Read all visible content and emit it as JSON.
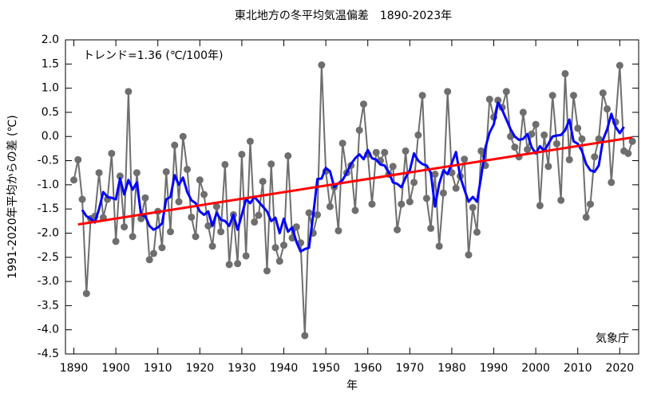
{
  "chart_data": {
    "type": "line",
    "title": "東北地方の冬平均気温偏差　1890-2023年",
    "x_label": "年",
    "y_label": "1991-2020年平均からの差 (℃)",
    "annotations": [
      "トレンド=1.36 (℃/100年)",
      "気象庁"
    ],
    "xlim": [
      1888,
      2024.5
    ],
    "ylim": [
      -4.5,
      2.0
    ],
    "xticks": [
      1890,
      1900,
      1910,
      1920,
      1930,
      1940,
      1950,
      1960,
      1970,
      1980,
      1990,
      2000,
      2010,
      2020
    ],
    "yticks": [
      {
        "value": 2.0,
        "label": "2.0"
      },
      1.5,
      {
        "value": 1.0,
        "label": "1.0"
      },
      0.5,
      {
        "value": 0.0,
        "label": "0.0"
      },
      -0.5,
      {
        "value": -1.0,
        "label": "-1.0"
      },
      -1.5,
      {
        "value": -2.0,
        "label": "-2.0"
      },
      -2.5,
      {
        "value": -3.0,
        "label": "-3.0"
      },
      -3.5,
      {
        "value": -4.0,
        "label": "-4.0"
      },
      -4.5
    ],
    "x": [
      1890,
      1891,
      1892,
      1893,
      1894,
      1895,
      1896,
      1897,
      1898,
      1899,
      1900,
      1901,
      1902,
      1903,
      1904,
      1905,
      1906,
      1907,
      1908,
      1909,
      1910,
      1911,
      1912,
      1913,
      1914,
      1915,
      1916,
      1917,
      1918,
      1919,
      1920,
      1921,
      1922,
      1923,
      1924,
      1925,
      1926,
      1927,
      1928,
      1929,
      1930,
      1931,
      1932,
      1933,
      1934,
      1935,
      1936,
      1937,
      1938,
      1939,
      1940,
      1941,
      1942,
      1943,
      1944,
      1945,
      1946,
      1947,
      1948,
      1949,
      1950,
      1951,
      1952,
      1953,
      1954,
      1955,
      1956,
      1957,
      1958,
      1959,
      1960,
      1961,
      1962,
      1963,
      1964,
      1965,
      1966,
      1967,
      1968,
      1969,
      1970,
      1971,
      1972,
      1973,
      1974,
      1975,
      1976,
      1977,
      1978,
      1979,
      1980,
      1981,
      1982,
      1983,
      1984,
      1985,
      1986,
      1987,
      1988,
      1989,
      1990,
      1991,
      1992,
      1993,
      1994,
      1995,
      1996,
      1997,
      1998,
      1999,
      2000,
      2001,
      2002,
      2003,
      2004,
      2005,
      2006,
      2007,
      2008,
      2009,
      2010,
      2011,
      2012,
      2013,
      2014,
      2015,
      2016,
      2017,
      2018,
      2019,
      2020,
      2021,
      2022,
      2023
    ],
    "series": [
      {
        "color": "#6e6e6e",
        "markers": true,
        "width": 2,
        "values": [
          -0.9,
          -0.48,
          -1.3,
          -3.25,
          -1.7,
          -1.65,
          -0.75,
          -1.68,
          -1.3,
          -0.35,
          -2.17,
          -0.82,
          -1.87,
          0.93,
          -2.07,
          -0.75,
          -1.7,
          -1.27,
          -2.55,
          -2.42,
          -1.55,
          -2.3,
          -0.73,
          -1.97,
          -0.18,
          -1.35,
          0.0,
          -0.68,
          -1.67,
          -2.07,
          -0.9,
          -1.2,
          -1.85,
          -2.27,
          -1.45,
          -1.97,
          -0.58,
          -2.65,
          -1.62,
          -2.63,
          -0.37,
          -2.47,
          -0.1,
          -1.77,
          -1.63,
          -0.93,
          -2.78,
          -0.57,
          -2.3,
          -2.58,
          -2.25,
          -0.4,
          -2.1,
          -1.87,
          -2.2,
          -4.12,
          -1.58,
          -2.0,
          -1.62,
          1.48,
          -0.72,
          -1.45,
          -1.05,
          -1.95,
          -0.14,
          -0.75,
          -0.6,
          -1.53,
          0.13,
          0.67,
          -0.37,
          -1.4,
          -0.33,
          -0.5,
          -0.33,
          -0.78,
          -0.62,
          -1.93,
          -1.4,
          -0.3,
          -1.35,
          -0.95,
          0.03,
          0.85,
          -1.28,
          -1.9,
          -0.78,
          -2.27,
          -1.17,
          0.93,
          -0.75,
          -1.07,
          -0.82,
          -0.47,
          -2.45,
          -1.47,
          -1.98,
          -0.3,
          -0.6,
          0.77,
          0.4,
          0.75,
          0.6,
          0.93,
          0.0,
          -0.22,
          -0.42,
          0.5,
          -0.27,
          0.05,
          0.25,
          -1.43,
          0.03,
          -0.62,
          0.85,
          -0.15,
          -1.32,
          1.3,
          -0.48,
          0.85,
          0.17,
          -0.05,
          -1.67,
          -1.4,
          -0.42,
          -0.05,
          0.9,
          0.57,
          -0.95,
          0.3,
          1.47,
          -0.3,
          -0.35,
          -0.1
        ]
      },
      {
        "color": "#0000ff",
        "markers": false,
        "width": 3,
        "values": [
          null,
          null,
          -1.52,
          -1.65,
          -1.7,
          -1.78,
          -1.5,
          -1.15,
          -1.25,
          -1.27,
          -1.3,
          -0.87,
          -1.2,
          -0.9,
          -1.1,
          -0.95,
          -1.62,
          -1.65,
          -1.85,
          -1.93,
          -1.88,
          -1.8,
          -1.3,
          -1.25,
          -0.8,
          -1.0,
          -0.85,
          -1.15,
          -1.32,
          -1.38,
          -1.55,
          -1.62,
          -1.55,
          -1.85,
          -1.58,
          -1.72,
          -1.75,
          -1.85,
          -1.62,
          -1.93,
          -1.62,
          -1.3,
          -1.38,
          -1.25,
          -1.35,
          -1.45,
          -1.55,
          -1.75,
          -1.68,
          -2.0,
          -1.7,
          -1.97,
          -1.88,
          -2.18,
          -2.38,
          -2.33,
          -2.3,
          -1.62,
          -0.88,
          -0.87,
          -0.65,
          -0.72,
          -1.05,
          -0.97,
          -0.9,
          -0.75,
          -0.57,
          -0.45,
          -0.37,
          -0.47,
          -0.28,
          -0.45,
          -0.48,
          -0.58,
          -0.6,
          -0.75,
          -0.95,
          -0.98,
          -1.05,
          -0.85,
          -0.7,
          -0.35,
          -0.5,
          -0.57,
          -0.6,
          -0.75,
          -1.45,
          -0.98,
          -0.7,
          -0.78,
          -0.55,
          -0.32,
          -0.83,
          -1.1,
          -1.35,
          -1.25,
          -1.35,
          -0.83,
          -0.23,
          0.08,
          0.25,
          0.7,
          0.55,
          0.35,
          0.15,
          0.0,
          -0.07,
          -0.05,
          0.05,
          -0.22,
          -0.35,
          -0.2,
          -0.3,
          -0.15,
          0.0,
          0.02,
          0.03,
          0.13,
          0.35,
          -0.1,
          -0.15,
          -0.3,
          -0.57,
          -0.7,
          -0.73,
          -0.6,
          -0.07,
          0.15,
          0.47,
          0.2,
          0.07,
          0.2,
          null,
          null
        ]
      },
      {
        "color": "#ff0000",
        "markers": false,
        "width": 3,
        "x": [
          1891,
          2023
        ],
        "values": [
          -1.82,
          -0.02
        ]
      }
    ]
  }
}
